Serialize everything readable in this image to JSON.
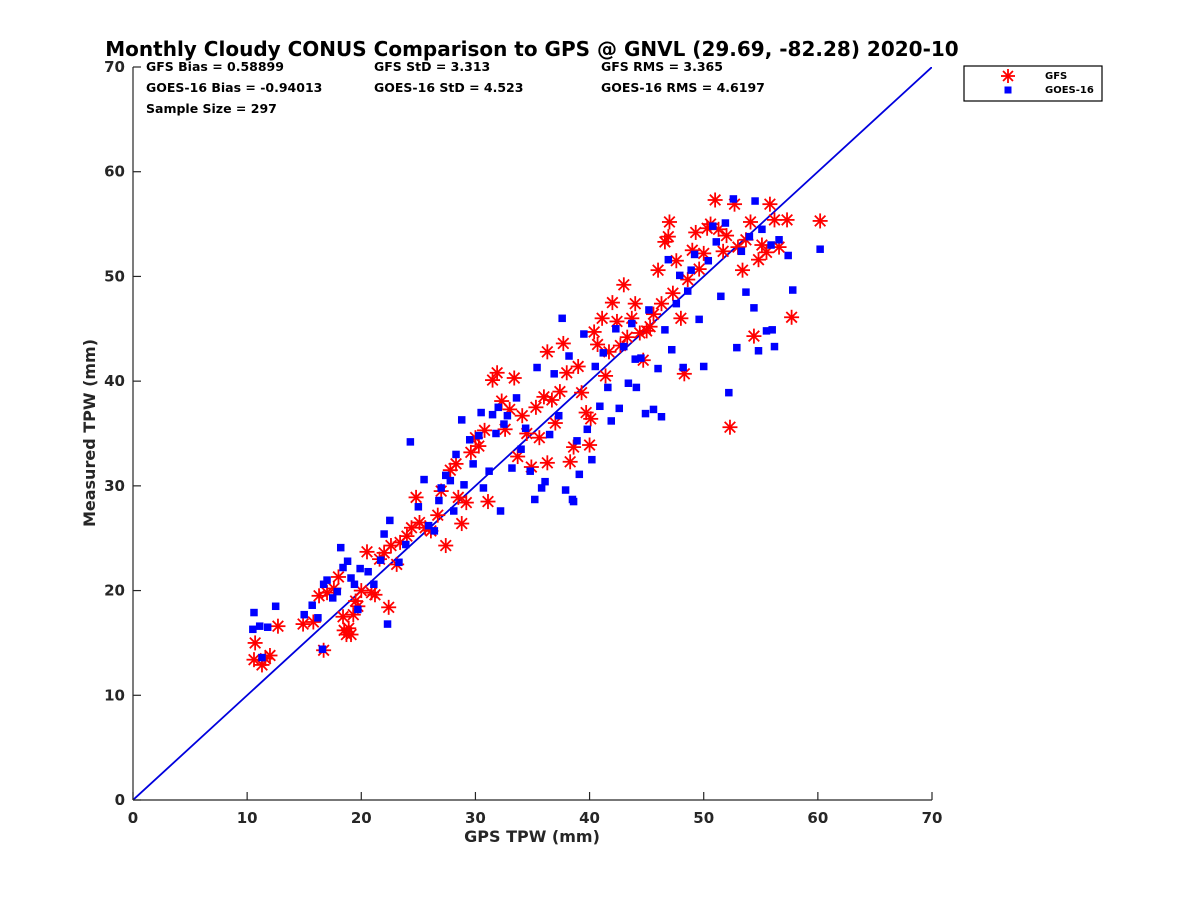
{
  "chart_data": {
    "type": "scatter",
    "title": "Monthly Cloudy CONUS Comparison to GPS @ GNVL (29.69, -82.28) 2020-10",
    "xlabel": "GPS TPW (mm)",
    "ylabel": "Measured TPW (mm)",
    "xlim": [
      0,
      70
    ],
    "ylim": [
      0,
      70
    ],
    "xticks": [
      "0",
      "10",
      "20",
      "30",
      "40",
      "50",
      "60",
      "70"
    ],
    "yticks": [
      "0",
      "10",
      "20",
      "30",
      "40",
      "50",
      "60",
      "70"
    ],
    "legend_position": "outside-top-right",
    "grid": false,
    "stats": {
      "gfs_bias": "GFS Bias = 0.58899",
      "goes_bias": "GOES-16 Bias = -0.94013",
      "sample_size": "Sample Size = 297",
      "gfs_std": "GFS StD = 3.313",
      "goes_std": "GOES-16 StD = 4.523",
      "gfs_rms": "GFS RMS = 3.365",
      "goes_rms": "GOES-16 RMS = 4.6197"
    },
    "reference_line": {
      "x": [
        0,
        70
      ],
      "y": [
        0,
        70
      ],
      "color": "#0000dd"
    },
    "series": [
      {
        "name": "GFS",
        "marker": "asterisk",
        "color": "#ff0000",
        "points": [
          [
            10.6,
            13.4
          ],
          [
            10.7,
            15.0
          ],
          [
            11.3,
            12.9
          ],
          [
            11.6,
            13.5
          ],
          [
            12.0,
            13.8
          ],
          [
            12.7,
            16.6
          ],
          [
            14.9,
            16.8
          ],
          [
            15.8,
            17.0
          ],
          [
            16.3,
            19.5
          ],
          [
            16.7,
            14.3
          ],
          [
            17.0,
            19.8
          ],
          [
            17.6,
            20.2
          ],
          [
            18.0,
            21.3
          ],
          [
            18.4,
            17.5
          ],
          [
            18.5,
            16.2
          ],
          [
            18.7,
            15.8
          ],
          [
            18.9,
            16.4
          ],
          [
            19.1,
            15.8
          ],
          [
            19.3,
            17.7
          ],
          [
            19.5,
            19.0
          ],
          [
            19.7,
            18.5
          ],
          [
            20.0,
            20.0
          ],
          [
            20.5,
            23.7
          ],
          [
            20.9,
            19.8
          ],
          [
            21.2,
            19.6
          ],
          [
            21.6,
            23.0
          ],
          [
            22.0,
            23.6
          ],
          [
            22.4,
            18.4
          ],
          [
            22.6,
            24.3
          ],
          [
            23.1,
            22.5
          ],
          [
            23.4,
            24.6
          ],
          [
            24.0,
            25.2
          ],
          [
            24.4,
            26.0
          ],
          [
            24.8,
            28.9
          ],
          [
            25.1,
            26.5
          ],
          [
            25.6,
            26.0
          ],
          [
            26.1,
            25.7
          ],
          [
            26.7,
            27.2
          ],
          [
            27.0,
            29.5
          ],
          [
            27.4,
            24.3
          ],
          [
            27.8,
            31.5
          ],
          [
            28.3,
            32.1
          ],
          [
            28.5,
            28.9
          ],
          [
            28.8,
            26.4
          ],
          [
            29.2,
            28.4
          ],
          [
            29.6,
            33.2
          ],
          [
            30.0,
            34.6
          ],
          [
            30.3,
            33.8
          ],
          [
            30.8,
            35.3
          ],
          [
            31.1,
            28.5
          ],
          [
            31.5,
            40.1
          ],
          [
            31.9,
            40.8
          ],
          [
            32.3,
            38.1
          ],
          [
            32.6,
            35.4
          ],
          [
            33.0,
            37.3
          ],
          [
            33.4,
            40.3
          ],
          [
            33.7,
            32.8
          ],
          [
            34.1,
            36.7
          ],
          [
            34.5,
            35.0
          ],
          [
            34.9,
            31.8
          ],
          [
            35.3,
            37.5
          ],
          [
            35.6,
            34.6
          ],
          [
            36.0,
            38.5
          ],
          [
            36.3,
            42.8
          ],
          [
            36.7,
            38.2
          ],
          [
            37.0,
            36.0
          ],
          [
            37.4,
            39.0
          ],
          [
            37.7,
            43.6
          ],
          [
            38.0,
            40.8
          ],
          [
            38.3,
            32.3
          ],
          [
            38.6,
            33.7
          ],
          [
            39.0,
            41.4
          ],
          [
            39.3,
            38.9
          ],
          [
            39.7,
            37.0
          ],
          [
            40.1,
            36.4
          ],
          [
            40.4,
            44.7
          ],
          [
            40.7,
            43.5
          ],
          [
            41.1,
            46.0
          ],
          [
            41.4,
            40.5
          ],
          [
            41.7,
            42.8
          ],
          [
            42.0,
            47.5
          ],
          [
            42.4,
            45.7
          ],
          [
            42.7,
            43.4
          ],
          [
            43.0,
            49.2
          ],
          [
            43.3,
            44.2
          ],
          [
            43.7,
            46.0
          ],
          [
            44.0,
            47.4
          ],
          [
            44.4,
            44.6
          ],
          [
            44.7,
            42.0
          ],
          [
            45.0,
            44.8
          ],
          [
            45.3,
            45.2
          ],
          [
            45.6,
            46.4
          ],
          [
            46.0,
            50.6
          ],
          [
            46.3,
            47.4
          ],
          [
            46.6,
            53.3
          ],
          [
            47.0,
            55.2
          ],
          [
            47.3,
            48.4
          ],
          [
            47.6,
            51.5
          ],
          [
            48.0,
            46.0
          ],
          [
            48.3,
            40.7
          ],
          [
            48.6,
            49.7
          ],
          [
            49.0,
            52.5
          ],
          [
            49.3,
            54.2
          ],
          [
            49.6,
            50.7
          ],
          [
            50.0,
            52.2
          ],
          [
            50.3,
            54.6
          ],
          [
            50.6,
            55.0
          ],
          [
            51.0,
            57.3
          ],
          [
            51.3,
            54.5
          ],
          [
            51.7,
            52.4
          ],
          [
            52.0,
            53.9
          ],
          [
            52.3,
            35.6
          ],
          [
            52.7,
            56.9
          ],
          [
            53.0,
            52.8
          ],
          [
            53.4,
            50.6
          ],
          [
            53.7,
            53.5
          ],
          [
            54.1,
            55.2
          ],
          [
            54.4,
            44.3
          ],
          [
            54.8,
            51.6
          ],
          [
            55.1,
            53.0
          ],
          [
            55.5,
            52.3
          ],
          [
            55.8,
            56.9
          ],
          [
            56.2,
            55.4
          ],
          [
            56.6,
            52.8
          ],
          [
            57.3,
            55.4
          ],
          [
            57.7,
            46.1
          ],
          [
            60.2,
            55.3
          ],
          [
            46.9,
            53.8
          ],
          [
            36.3,
            32.2
          ],
          [
            40.0,
            33.9
          ]
        ]
      },
      {
        "name": "GOES-16",
        "marker": "square",
        "color": "#0000ff",
        "points": [
          [
            10.5,
            16.3
          ],
          [
            10.6,
            17.9
          ],
          [
            11.1,
            16.6
          ],
          [
            11.3,
            13.6
          ],
          [
            11.8,
            16.5
          ],
          [
            12.5,
            18.5
          ],
          [
            15.0,
            17.7
          ],
          [
            15.7,
            18.6
          ],
          [
            16.2,
            17.4
          ],
          [
            16.6,
            14.4
          ],
          [
            16.7,
            20.6
          ],
          [
            17.0,
            21.0
          ],
          [
            17.5,
            19.3
          ],
          [
            17.9,
            19.9
          ],
          [
            18.2,
            24.1
          ],
          [
            18.4,
            22.2
          ],
          [
            18.8,
            22.8
          ],
          [
            19.1,
            21.2
          ],
          [
            19.4,
            20.6
          ],
          [
            19.7,
            18.2
          ],
          [
            19.9,
            22.1
          ],
          [
            20.6,
            21.8
          ],
          [
            21.1,
            20.6
          ],
          [
            21.7,
            22.9
          ],
          [
            22.0,
            25.4
          ],
          [
            22.3,
            16.8
          ],
          [
            22.5,
            26.7
          ],
          [
            23.3,
            22.7
          ],
          [
            23.9,
            24.4
          ],
          [
            24.3,
            34.2
          ],
          [
            25.0,
            28.0
          ],
          [
            25.5,
            30.6
          ],
          [
            25.9,
            26.2
          ],
          [
            26.4,
            25.7
          ],
          [
            26.8,
            28.6
          ],
          [
            27.0,
            29.8
          ],
          [
            27.4,
            31.0
          ],
          [
            27.8,
            30.5
          ],
          [
            28.3,
            33.0
          ],
          [
            28.8,
            36.3
          ],
          [
            29.0,
            30.1
          ],
          [
            29.5,
            34.4
          ],
          [
            29.8,
            32.1
          ],
          [
            30.3,
            34.8
          ],
          [
            30.7,
            29.8
          ],
          [
            31.2,
            31.4
          ],
          [
            31.5,
            36.8
          ],
          [
            31.8,
            35.0
          ],
          [
            32.0,
            37.5
          ],
          [
            32.2,
            27.6
          ],
          [
            32.5,
            35.9
          ],
          [
            32.8,
            36.7
          ],
          [
            33.2,
            31.7
          ],
          [
            33.6,
            38.4
          ],
          [
            34.0,
            33.5
          ],
          [
            34.4,
            35.5
          ],
          [
            34.8,
            31.4
          ],
          [
            35.2,
            28.7
          ],
          [
            35.4,
            41.3
          ],
          [
            35.8,
            29.8
          ],
          [
            36.1,
            30.4
          ],
          [
            36.5,
            34.9
          ],
          [
            36.9,
            40.7
          ],
          [
            37.3,
            36.7
          ],
          [
            37.6,
            46.0
          ],
          [
            37.9,
            29.6
          ],
          [
            38.2,
            42.4
          ],
          [
            38.6,
            28.5
          ],
          [
            38.9,
            34.3
          ],
          [
            39.1,
            31.1
          ],
          [
            39.5,
            44.5
          ],
          [
            39.8,
            35.4
          ],
          [
            40.2,
            32.5
          ],
          [
            40.5,
            41.4
          ],
          [
            40.9,
            37.6
          ],
          [
            41.2,
            42.7
          ],
          [
            41.6,
            39.4
          ],
          [
            41.9,
            36.2
          ],
          [
            42.3,
            45.0
          ],
          [
            42.6,
            37.4
          ],
          [
            43.0,
            43.3
          ],
          [
            43.4,
            39.8
          ],
          [
            43.7,
            45.5
          ],
          [
            44.1,
            39.4
          ],
          [
            44.5,
            42.2
          ],
          [
            44.9,
            36.9
          ],
          [
            45.2,
            46.8
          ],
          [
            45.6,
            37.3
          ],
          [
            46.0,
            41.2
          ],
          [
            46.3,
            36.6
          ],
          [
            46.6,
            44.9
          ],
          [
            46.9,
            51.6
          ],
          [
            47.2,
            43.0
          ],
          [
            47.6,
            47.4
          ],
          [
            47.9,
            50.1
          ],
          [
            48.2,
            41.3
          ],
          [
            48.6,
            48.6
          ],
          [
            48.9,
            50.6
          ],
          [
            49.2,
            52.1
          ],
          [
            49.6,
            45.9
          ],
          [
            50.0,
            41.4
          ],
          [
            50.4,
            51.5
          ],
          [
            50.8,
            54.8
          ],
          [
            51.1,
            53.3
          ],
          [
            51.5,
            48.1
          ],
          [
            51.9,
            55.1
          ],
          [
            52.2,
            38.9
          ],
          [
            52.6,
            57.4
          ],
          [
            52.9,
            43.2
          ],
          [
            53.3,
            52.4
          ],
          [
            53.7,
            48.5
          ],
          [
            54.0,
            53.8
          ],
          [
            54.4,
            47.0
          ],
          [
            54.8,
            42.9
          ],
          [
            55.1,
            54.5
          ],
          [
            55.5,
            44.8
          ],
          [
            55.9,
            53.0
          ],
          [
            56.2,
            43.3
          ],
          [
            56.6,
            53.5
          ],
          [
            57.4,
            52.0
          ],
          [
            57.8,
            48.7
          ],
          [
            60.2,
            52.6
          ],
          [
            54.5,
            57.2
          ],
          [
            56.0,
            44.9
          ],
          [
            44.0,
            42.1
          ],
          [
            30.5,
            37.0
          ],
          [
            38.5,
            28.7
          ],
          [
            28.1,
            27.6
          ]
        ]
      }
    ]
  }
}
